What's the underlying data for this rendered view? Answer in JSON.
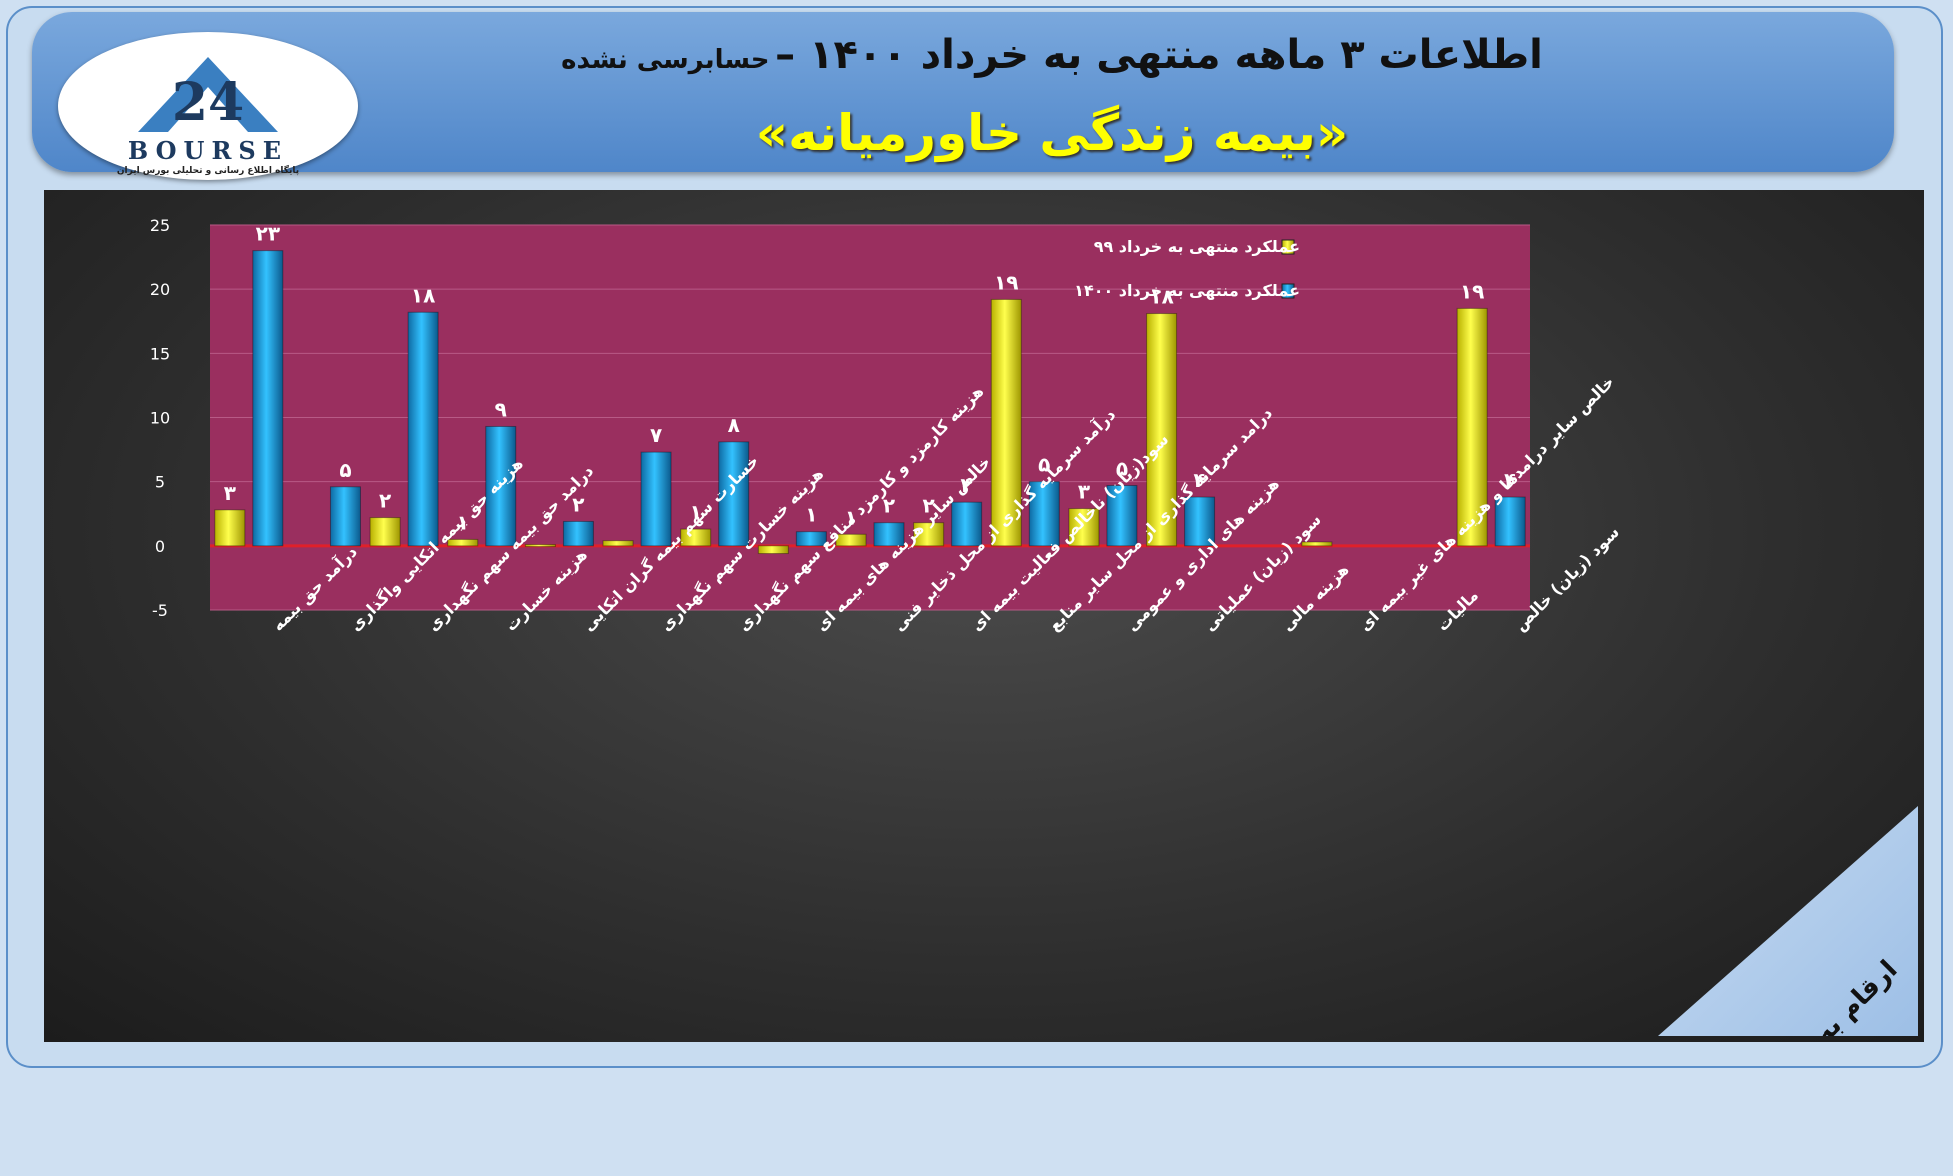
{
  "header": {
    "title": "اطلاعات ۳ ماهه منتهی به خرداد ۱۴۰۰ –",
    "subtitle": "حسابرسی نشده",
    "company": "«بیمه زندگی خاورمیانه»"
  },
  "logo": {
    "number": "24",
    "name": "BOURSE",
    "tagline": "پایگاه اطلاع رسانی و تحلیلی بورس ایران"
  },
  "note": "ارقام به میلیارد تومان",
  "chart_data": {
    "type": "bar",
    "ylim": [
      -5,
      25
    ],
    "yticks": [
      "25",
      "20",
      "15",
      "10",
      "5",
      "0",
      "-5"
    ],
    "legend_position": "top-right",
    "categories": [
      "درآمد حق بیمه",
      "هزینه حق بیمه اتکایی واگذاری",
      "درامد حق بیمه سهم نگهداری",
      "هزینه خسارت",
      "خسارت سهم بیمه گران اتکایی",
      "هزینه خسارت سهم نگهداری",
      "هزینه کارمزد و کارمزد منافع سهم نگهداری",
      "خالص سایر هزینه های بیمه ای",
      "درآمد سرمایه گذاری از محل ذخایر فنی",
      "سود(زیان) ناخالص فعالیت بیمه ای",
      "درامد سرمایه گذاری از محل سایر منابع",
      "هزینه های اداری و عمومی",
      "سود (زیان) عملیاتی",
      "هزینه مالی",
      "خالص سایر درامدها و هزینه های غیر بیمه ای",
      "مالیات",
      "سود (زیان) خالص"
    ],
    "series": [
      {
        "name": "عملکرد منتهی به خرداد ۹۹",
        "color": "#e8e000",
        "values": [
          2.8,
          null,
          2.2,
          0.5,
          0.1,
          0.4,
          1.3,
          -0.6,
          0.9,
          1.8,
          19.2,
          2.9,
          18.1,
          null,
          0.3,
          null,
          18.5
        ],
        "labels": [
          "۳",
          "",
          "۲",
          "۱",
          "",
          "",
          "۱",
          "",
          "۱",
          "۲",
          "۱۹",
          "۳",
          "۱۸",
          "",
          "",
          "",
          "۱۹"
        ]
      },
      {
        "name": "عملکرد منتهی به خرداد ۱۴۰۰",
        "color": "#1f9ad6",
        "values": [
          23.0,
          4.6,
          18.2,
          9.3,
          1.9,
          7.3,
          8.1,
          1.1,
          1.8,
          3.4,
          5.0,
          4.7,
          3.8,
          null,
          null,
          null,
          3.8
        ],
        "labels": [
          "۲۳",
          "۵",
          "۱۸",
          "۹",
          "۲",
          "۷",
          "۸",
          "۱",
          "۲",
          "۳",
          "۵",
          "۵",
          "۴",
          "",
          "",
          "",
          "۴"
        ]
      }
    ]
  }
}
